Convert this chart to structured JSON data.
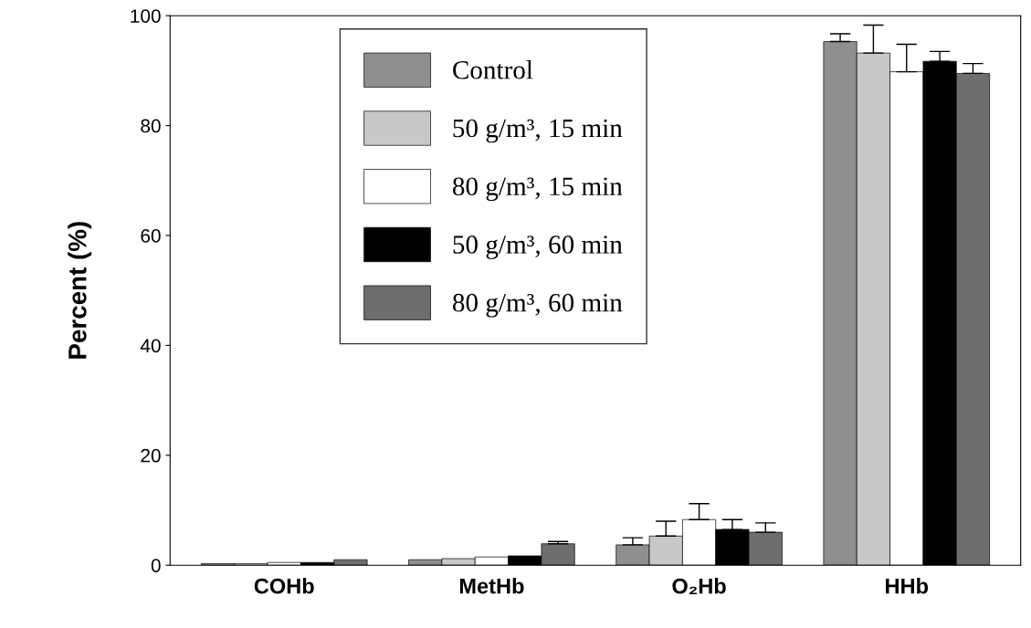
{
  "chart_data": {
    "type": "bar",
    "ylabel": "Percent (%)",
    "categories": [
      "COHb",
      "MetHb",
      "O₂Hb",
      "HHb"
    ],
    "ylim": [
      0,
      100
    ],
    "yticks": [
      0,
      20,
      40,
      60,
      80,
      100
    ],
    "grid": false,
    "legend": "top",
    "series": [
      {
        "name": "Control",
        "color": "#8f8f8f",
        "values": [
          0.3,
          1.0,
          3.7,
          95.3
        ],
        "errors": [
          null,
          null,
          1.3,
          1.4
        ]
      },
      {
        "name": "50 g/m³, 15 min",
        "color": "#c8c8c8",
        "values": [
          0.3,
          1.2,
          5.3,
          93.2
        ],
        "errors": [
          null,
          null,
          2.7,
          5.1
        ]
      },
      {
        "name": "80 g/m³, 15 min",
        "color": "#ffffff",
        "values": [
          0.5,
          1.5,
          8.3,
          89.8
        ],
        "errors": [
          null,
          null,
          2.9,
          5.0
        ]
      },
      {
        "name": "50 g/m³, 60 min",
        "color": "#000000",
        "values": [
          0.5,
          1.7,
          6.5,
          91.7
        ],
        "errors": [
          null,
          null,
          1.8,
          1.8
        ]
      },
      {
        "name": "80 g/m³, 60 min",
        "color": "#6e6e6e",
        "values": [
          1.0,
          3.9,
          6.0,
          89.5
        ],
        "errors": [
          null,
          0.4,
          1.7,
          1.8
        ]
      }
    ]
  }
}
